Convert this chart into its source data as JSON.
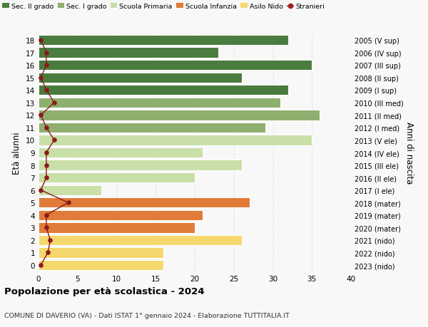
{
  "ages": [
    0,
    1,
    2,
    3,
    4,
    5,
    6,
    7,
    8,
    9,
    10,
    11,
    12,
    13,
    14,
    15,
    16,
    17,
    18
  ],
  "right_labels": [
    "2023 (nido)",
    "2022 (nido)",
    "2021 (nido)",
    "2020 (mater)",
    "2019 (mater)",
    "2018 (mater)",
    "2017 (I ele)",
    "2016 (II ele)",
    "2015 (III ele)",
    "2014 (IV ele)",
    "2013 (V ele)",
    "2012 (I med)",
    "2011 (II med)",
    "2010 (III med)",
    "2009 (I sup)",
    "2008 (II sup)",
    "2007 (III sup)",
    "2006 (IV sup)",
    "2005 (V sup)"
  ],
  "bar_values": [
    16,
    16,
    26,
    20,
    21,
    27,
    8,
    20,
    26,
    21,
    35,
    29,
    36,
    31,
    32,
    26,
    35,
    23,
    32
  ],
  "bar_colors": [
    "#f5d76e",
    "#f5d76e",
    "#f5d76e",
    "#e07b39",
    "#e07b39",
    "#e07b39",
    "#c9dfa8",
    "#c9dfa8",
    "#c9dfa8",
    "#c9dfa8",
    "#c9dfa8",
    "#8faf6e",
    "#8faf6e",
    "#8faf6e",
    "#4a7c3f",
    "#4a7c3f",
    "#4a7c3f",
    "#4a7c3f",
    "#4a7c3f"
  ],
  "stranieri_values": [
    0.3,
    1.2,
    1.5,
    1.0,
    1.0,
    3.8,
    0.3,
    1.0,
    1.0,
    1.0,
    2.0,
    1.0,
    0.3,
    2.0,
    1.0,
    0.3,
    1.0,
    1.0,
    0.3
  ],
  "legend_labels": [
    "Sec. II grado",
    "Sec. I grado",
    "Scuola Primaria",
    "Scuola Infanzia",
    "Asilo Nido",
    "Stranieri"
  ],
  "legend_colors": [
    "#4a7c3f",
    "#8faf6e",
    "#c9dfa8",
    "#e07b39",
    "#f5d76e",
    "#a02020"
  ],
  "ylabel": "Età alunni",
  "right_ylabel": "Anni di nascita",
  "title": "Popolazione per età scolastica - 2024",
  "subtitle": "COMUNE DI DAVERIO (VA) - Dati ISTAT 1° gennaio 2024 - Elaborazione TUTTITALIA.IT",
  "xlim": [
    0,
    40
  ],
  "xticks": [
    0,
    5,
    10,
    15,
    20,
    25,
    30,
    35,
    40
  ],
  "background_color": "#f8f8f8",
  "grid_color": "#dddddd"
}
